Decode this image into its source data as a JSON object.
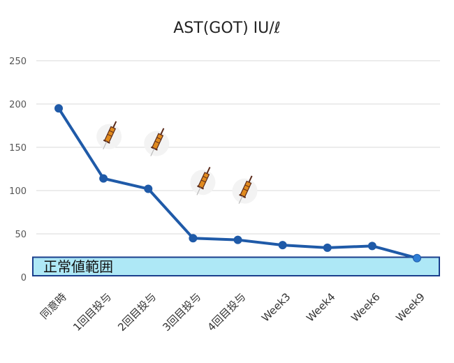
{
  "chart_data": {
    "type": "line",
    "title": "AST(GOT) IU/ℓ",
    "xlabel": "",
    "ylabel": "",
    "categories": [
      "同意時",
      "1回目投与",
      "2回目投与",
      "3回目投与",
      "4回目投与",
      "Week3",
      "Week4",
      "Week6",
      "Week9"
    ],
    "series": [
      {
        "values": [
          195,
          114,
          102,
          45,
          43,
          37,
          34,
          36,
          22
        ]
      }
    ],
    "ylim": [
      0,
      250
    ],
    "yticks": [
      0,
      50,
      100,
      150,
      200,
      250
    ],
    "grid": true,
    "legend": "none",
    "annotations": {
      "normal_range": {
        "label": "正常値範囲",
        "range": [
          0,
          23
        ]
      },
      "injection_icons": {
        "icon": "syringe-icon",
        "at_categories": [
          "1回目投与",
          "2回目投与",
          "3回目投与",
          "4回目投与"
        ]
      }
    }
  },
  "colors": {
    "line": "#1F5AA8",
    "band_fill": "#AEE8F6",
    "band_border": "#1A3E8C",
    "grid": "#D9D9D9",
    "syringe_barrel": "#E08A1E",
    "syringe_dark": "#5A2A1A"
  }
}
